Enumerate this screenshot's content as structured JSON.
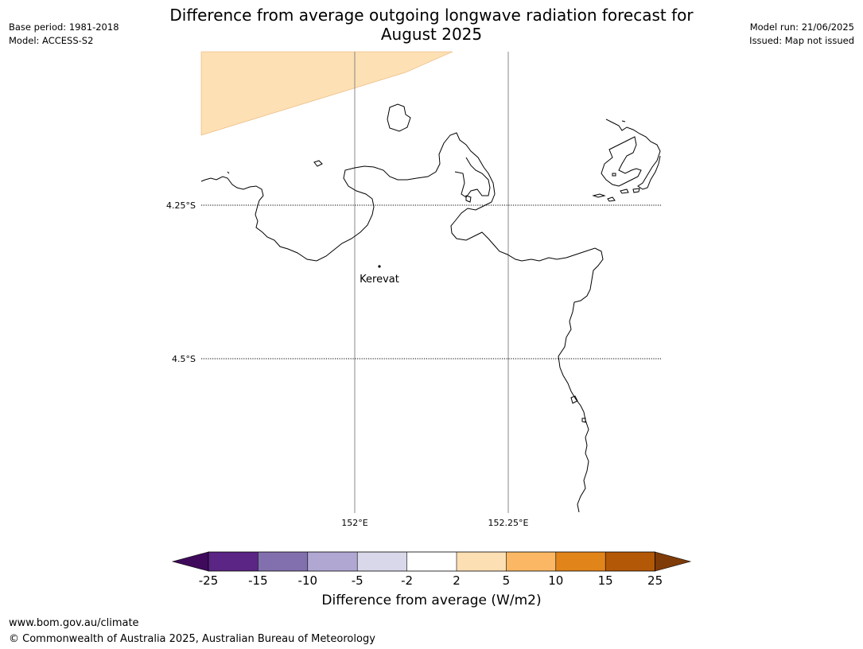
{
  "header": {
    "title_line1": "Difference from average outgoing longwave radiation forecast for",
    "title_line2": "August 2025",
    "base_period": "Base period: 1981-2018",
    "model": "Model: ACCESS-S2",
    "model_run": "Model run: 21/06/2025",
    "issued": "Issued: Map not issued"
  },
  "map": {
    "lat_labels": [
      "4.25°S",
      "4.5°S"
    ],
    "lon_labels": [
      "152°E",
      "152.25°E"
    ],
    "place": "Kerevat",
    "shading_color": "#fde0b4",
    "coast_color": "#000000"
  },
  "legend": {
    "title": "Difference from average (W/m2)",
    "ticks": [
      "-25",
      "-15",
      "-10",
      "-5",
      "-2",
      "2",
      "5",
      "10",
      "15",
      "25"
    ],
    "colors": [
      "#3f0a5c",
      "#5a2585",
      "#8270ae",
      "#b0a8d2",
      "#d9d8ea",
      "#ffffff",
      "#fddfb4",
      "#fbb763",
      "#e1841a",
      "#b35807",
      "#7f3b08"
    ]
  },
  "footer": {
    "url": "www.bom.gov.au/climate",
    "copyright": "© Commonwealth of Australia 2025, Australian Bureau of Meteorology"
  }
}
